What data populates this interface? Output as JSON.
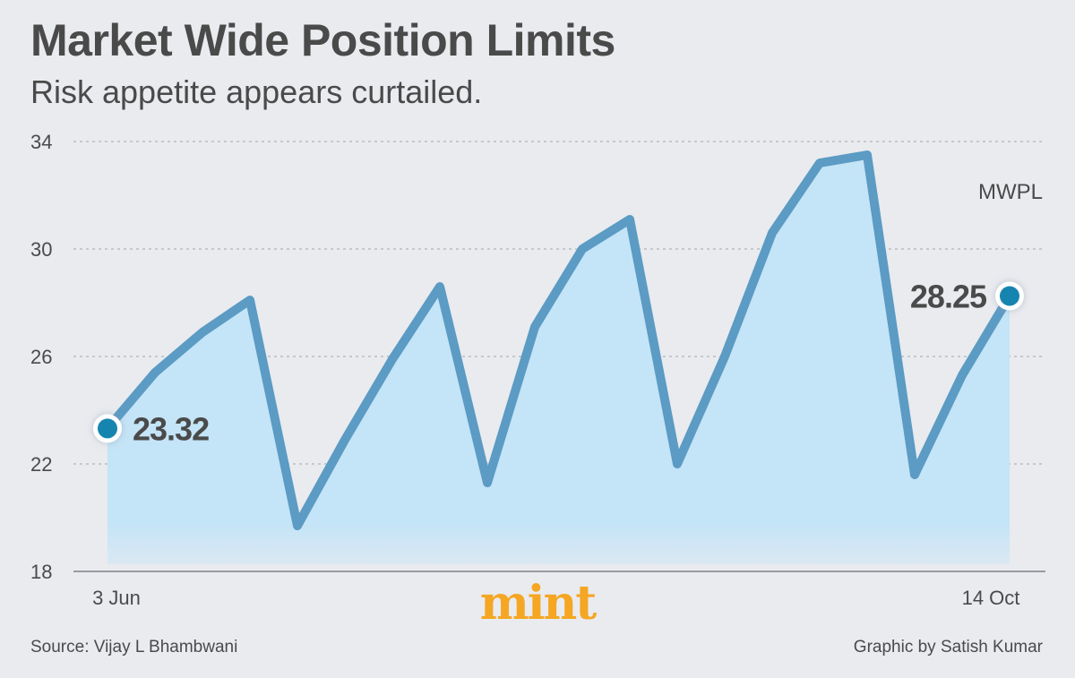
{
  "header": {
    "title": "Market Wide Position Limits",
    "subtitle": "Risk appetite appears curtailed."
  },
  "chart_data": {
    "type": "area",
    "title": "Market Wide Position Limits",
    "subtitle": "Risk appetite appears curtailed.",
    "series_label": "MWPL",
    "x_tick_labels": [
      "3 Jun",
      "14 Oct"
    ],
    "y_ticks": [
      18,
      22,
      26,
      30,
      34
    ],
    "ylim": [
      18,
      34
    ],
    "grid": true,
    "series": [
      {
        "name": "MWPL",
        "values": [
          23.32,
          25.4,
          26.9,
          28.1,
          19.7,
          22.9,
          25.9,
          28.6,
          21.3,
          27.1,
          30.0,
          31.1,
          22.0,
          26.0,
          30.6,
          33.2,
          33.5,
          21.6,
          25.3,
          28.25
        ]
      }
    ],
    "annotations": [
      {
        "index": 0,
        "text": "23.32"
      },
      {
        "index": 19,
        "text": "28.25"
      }
    ],
    "colors": {
      "line": "#5b9bc4",
      "fill": "#c4e4f7",
      "endpoint": "#1585b0",
      "grid": "#b0b3b8"
    }
  },
  "footer": {
    "logo": "mint",
    "source": "Source: Vijay L Bhambwani",
    "credit": "Graphic by Satish Kumar"
  }
}
